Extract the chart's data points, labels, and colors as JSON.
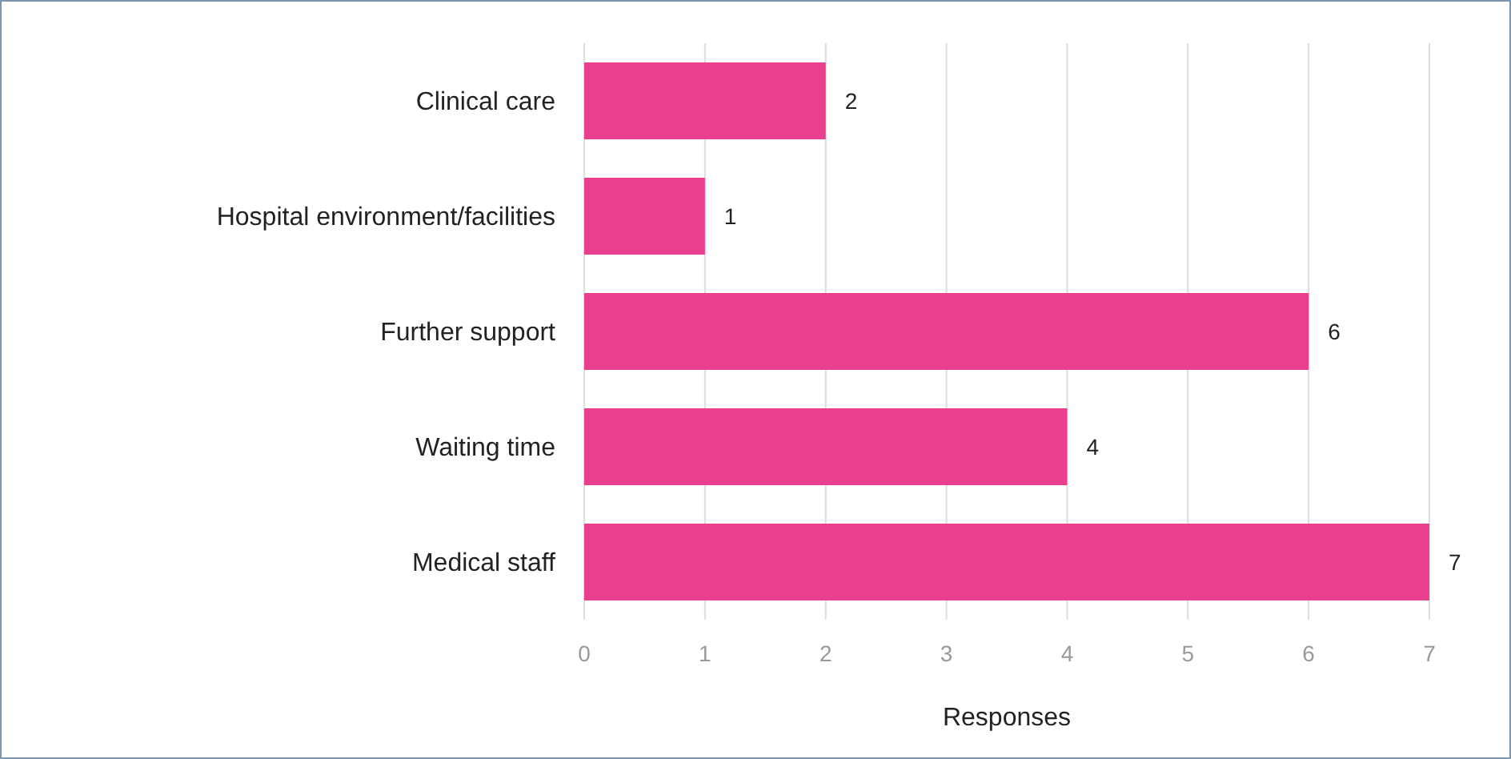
{
  "chart_data": {
    "type": "bar",
    "orientation": "horizontal",
    "categories": [
      "Clinical care",
      "Hospital environment/facilities",
      "Further support",
      "Waiting time",
      "Medical staff"
    ],
    "values": [
      2,
      1,
      6,
      4,
      7
    ],
    "color": "#e8408f",
    "xlabel": "Responses",
    "xlim": [
      0,
      7
    ],
    "xticks": [
      0,
      1,
      2,
      3,
      4,
      5,
      6,
      7
    ],
    "grid": "x",
    "data_labels": true
  }
}
